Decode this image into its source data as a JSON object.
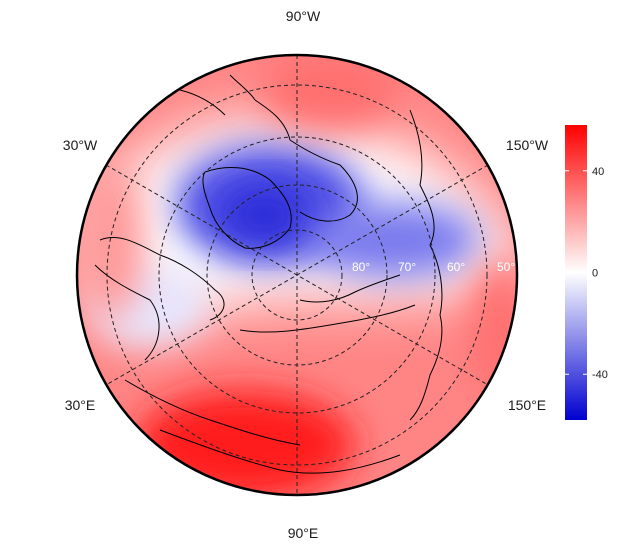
{
  "map": {
    "projection": "north-polar-stereographic",
    "longitude_labels": {
      "top": "90°W",
      "upper_left": "30°W",
      "upper_right": "150°W",
      "lower_left": "30°E",
      "lower_right": "150°E",
      "bottom": "90°E"
    },
    "latitude_labels": [
      "80°",
      "70°",
      "60°",
      "50°"
    ],
    "graticule_style": "dashed",
    "coastlines": true
  },
  "colorbar": {
    "ticks": [
      "40",
      "0",
      "-40"
    ],
    "tick_values": [
      40,
      0,
      -40
    ],
    "range": [
      -58,
      58
    ],
    "colors": {
      "high": "#ff0000",
      "mid": "#ffffff",
      "low": "#0000d0"
    }
  }
}
